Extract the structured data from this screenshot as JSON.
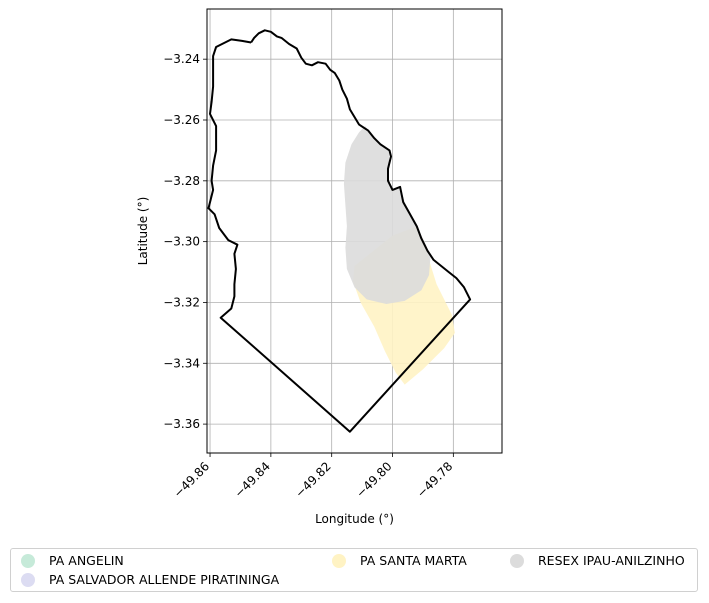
{
  "chart_data": {
    "type": "map",
    "title": "",
    "xlabel": "Longitude (°)",
    "ylabel": "Latitude (°)",
    "xlim": [
      -49.861,
      -49.764
    ],
    "ylim": [
      -3.3695,
      -3.2235
    ],
    "grid": true,
    "x_ticks": [
      -49.86,
      -49.84,
      -49.82,
      -49.8,
      -49.78
    ],
    "x_tick_labels": [
      "−49.86",
      "−49.84",
      "−49.82",
      "−49.80",
      "−49.78"
    ],
    "y_ticks": [
      -3.24,
      -3.26,
      -3.28,
      -3.3,
      -3.32,
      -3.34,
      -3.36
    ],
    "y_tick_labels": [
      "−3.24",
      "−3.26",
      "−3.28",
      "−3.30",
      "−3.32",
      "−3.34",
      "−3.36"
    ],
    "boundary": {
      "color": "#000000",
      "coords": [
        [
          -49.8465,
          -3.2345
        ],
        [
          -49.8455,
          -3.233
        ],
        [
          -49.844,
          -3.2315
        ],
        [
          -49.842,
          -3.2305
        ],
        [
          -49.84,
          -3.231
        ],
        [
          -49.838,
          -3.2325
        ],
        [
          -49.8365,
          -3.233
        ],
        [
          -49.834,
          -3.235
        ],
        [
          -49.8315,
          -3.2365
        ],
        [
          -49.83,
          -3.2395
        ],
        [
          -49.8285,
          -3.2415
        ],
        [
          -49.8265,
          -3.242
        ],
        [
          -49.8245,
          -3.241
        ],
        [
          -49.822,
          -3.2415
        ],
        [
          -49.8205,
          -3.2435
        ],
        [
          -49.819,
          -3.2445
        ],
        [
          -49.8175,
          -3.247
        ],
        [
          -49.8165,
          -3.25
        ],
        [
          -49.815,
          -3.253
        ],
        [
          -49.814,
          -3.2565
        ],
        [
          -49.8125,
          -3.259
        ],
        [
          -49.811,
          -3.2615
        ],
        [
          -49.808,
          -3.2635
        ],
        [
          -49.806,
          -3.266
        ],
        [
          -49.804,
          -3.268
        ],
        [
          -49.801,
          -3.27
        ],
        [
          -49.8005,
          -3.272
        ],
        [
          -49.8015,
          -3.276
        ],
        [
          -49.8015,
          -3.28
        ],
        [
          -49.8,
          -3.283
        ],
        [
          -49.7975,
          -3.282
        ],
        [
          -49.7965,
          -3.287
        ],
        [
          -49.7945,
          -3.2905
        ],
        [
          -49.792,
          -3.295
        ],
        [
          -49.7905,
          -3.299
        ],
        [
          -49.7885,
          -3.303
        ],
        [
          -49.7865,
          -3.306
        ],
        [
          -49.784,
          -3.308
        ],
        [
          -49.7815,
          -3.31
        ],
        [
          -49.779,
          -3.312
        ],
        [
          -49.7765,
          -3.315
        ],
        [
          -49.7745,
          -3.319
        ],
        [
          -49.814,
          -3.3625
        ],
        [
          -49.8565,
          -3.325
        ],
        [
          -49.853,
          -3.322
        ],
        [
          -49.852,
          -3.318
        ],
        [
          -49.852,
          -3.314
        ],
        [
          -49.8515,
          -3.309
        ],
        [
          -49.852,
          -3.304
        ],
        [
          -49.851,
          -3.301
        ],
        [
          -49.854,
          -3.2995
        ],
        [
          -49.857,
          -3.2955
        ],
        [
          -49.8585,
          -3.291
        ],
        [
          -49.8605,
          -3.289
        ],
        [
          -49.859,
          -3.283
        ],
        [
          -49.8595,
          -3.28
        ],
        [
          -49.859,
          -3.275
        ],
        [
          -49.858,
          -3.27
        ],
        [
          -49.858,
          -3.262
        ],
        [
          -49.86,
          -3.258
        ],
        [
          -49.8595,
          -3.254
        ],
        [
          -49.859,
          -3.249
        ],
        [
          -49.859,
          -3.245
        ],
        [
          -49.859,
          -3.239
        ],
        [
          -49.858,
          -3.236
        ],
        [
          -49.853,
          -3.2335
        ],
        [
          -49.8495,
          -3.234
        ],
        [
          -49.8465,
          -3.2345
        ]
      ]
    },
    "legend": {
      "placement": "bottom",
      "entries": [
        {
          "name": "PA ANGELIN",
          "color": "#c6ead9"
        },
        {
          "name": "PA SALVADOR ALLENDE PIRATININGA",
          "color": "#dcdcf2"
        },
        {
          "name": "PA SANTA MARTA",
          "color": "#fff3c4"
        },
        {
          "name": "RESEX IPAU-ANILZINHO",
          "color": "#dcdcdc"
        }
      ]
    },
    "polygons": [
      {
        "name": "PA SANTA MARTA",
        "color": "#fff3c4",
        "coords": [
          [
            -49.8125,
            -3.308
          ],
          [
            -49.8,
            -3.298
          ],
          [
            -49.792,
            -3.295
          ],
          [
            -49.7895,
            -3.3
          ],
          [
            -49.788,
            -3.306
          ],
          [
            -49.7855,
            -3.314
          ],
          [
            -49.7805,
            -3.324
          ],
          [
            -49.7795,
            -3.33
          ],
          [
            -49.783,
            -3.335
          ],
          [
            -49.79,
            -3.342
          ],
          [
            -49.796,
            -3.347
          ],
          [
            -49.799,
            -3.343
          ],
          [
            -49.8025,
            -3.336
          ],
          [
            -49.806,
            -3.328
          ],
          [
            -49.8105,
            -3.32
          ],
          [
            -49.813,
            -3.313
          ]
        ]
      },
      {
        "name": "RESEX IPAU-ANILZINHO",
        "color": "#dcdcdc",
        "coords": [
          [
            -49.809,
            -3.262
          ],
          [
            -49.806,
            -3.266
          ],
          [
            -49.8035,
            -3.2685
          ],
          [
            -49.801,
            -3.2705
          ],
          [
            -49.8012,
            -3.274
          ],
          [
            -49.8015,
            -3.28
          ],
          [
            -49.8,
            -3.283
          ],
          [
            -49.7975,
            -3.282
          ],
          [
            -49.796,
            -3.287
          ],
          [
            -49.794,
            -3.291
          ],
          [
            -49.7915,
            -3.296
          ],
          [
            -49.789,
            -3.301
          ],
          [
            -49.7875,
            -3.305
          ],
          [
            -49.788,
            -3.311
          ],
          [
            -49.7905,
            -3.316
          ],
          [
            -49.796,
            -3.3195
          ],
          [
            -49.802,
            -3.3205
          ],
          [
            -49.8085,
            -3.319
          ],
          [
            -49.8125,
            -3.315
          ],
          [
            -49.815,
            -3.309
          ],
          [
            -49.8155,
            -3.302
          ],
          [
            -49.815,
            -3.295
          ],
          [
            -49.8155,
            -3.288
          ],
          [
            -49.816,
            -3.281
          ],
          [
            -49.8155,
            -3.274
          ],
          [
            -49.8135,
            -3.268
          ],
          [
            -49.811,
            -3.264
          ]
        ]
      }
    ]
  }
}
